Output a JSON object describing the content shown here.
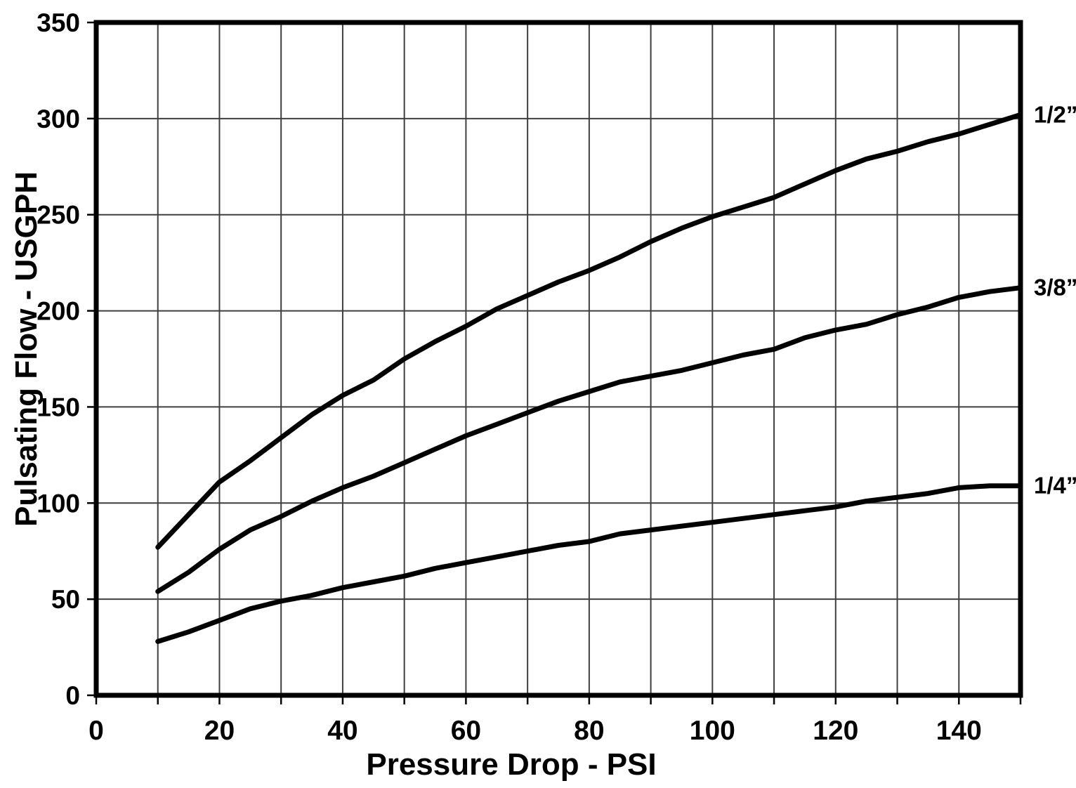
{
  "figure": {
    "background": "#ffffff",
    "ink": "#000000",
    "grid_color": "#3f3f3f"
  },
  "chart_data": {
    "type": "line",
    "title": "",
    "xlabel": "Pressure Drop - PSI",
    "ylabel": "Pulsating Flow - USGPH",
    "xlim": [
      0,
      150
    ],
    "ylim": [
      0,
      350
    ],
    "x_grid_step": 10,
    "y_grid_step": 50,
    "x_tick_labels": [
      0,
      20,
      40,
      60,
      80,
      100,
      120,
      140
    ],
    "y_tick_labels": [
      0,
      50,
      100,
      150,
      200,
      250,
      300,
      350
    ],
    "grid": true,
    "line_color": "#000000",
    "legend_position": "right-of-line-ends",
    "series": [
      {
        "name": "1/2”",
        "points": [
          [
            10,
            77
          ],
          [
            15,
            94
          ],
          [
            20,
            111
          ],
          [
            25,
            122
          ],
          [
            30,
            134
          ],
          [
            35,
            146
          ],
          [
            40,
            156
          ],
          [
            45,
            164
          ],
          [
            50,
            175
          ],
          [
            55,
            184
          ],
          [
            60,
            192
          ],
          [
            65,
            201
          ],
          [
            70,
            208
          ],
          [
            75,
            215
          ],
          [
            80,
            221
          ],
          [
            85,
            228
          ],
          [
            90,
            236
          ],
          [
            95,
            243
          ],
          [
            100,
            249
          ],
          [
            105,
            254
          ],
          [
            110,
            259
          ],
          [
            115,
            266
          ],
          [
            120,
            273
          ],
          [
            125,
            279
          ],
          [
            130,
            283
          ],
          [
            135,
            288
          ],
          [
            140,
            292
          ],
          [
            145,
            297
          ],
          [
            150,
            302
          ]
        ]
      },
      {
        "name": "3/8”",
        "points": [
          [
            10,
            54
          ],
          [
            15,
            64
          ],
          [
            20,
            76
          ],
          [
            25,
            86
          ],
          [
            30,
            93
          ],
          [
            35,
            101
          ],
          [
            40,
            108
          ],
          [
            45,
            114
          ],
          [
            50,
            121
          ],
          [
            55,
            128
          ],
          [
            60,
            135
          ],
          [
            65,
            141
          ],
          [
            70,
            147
          ],
          [
            75,
            153
          ],
          [
            80,
            158
          ],
          [
            85,
            163
          ],
          [
            90,
            166
          ],
          [
            95,
            169
          ],
          [
            100,
            173
          ],
          [
            105,
            177
          ],
          [
            110,
            180
          ],
          [
            115,
            186
          ],
          [
            120,
            190
          ],
          [
            125,
            193
          ],
          [
            130,
            198
          ],
          [
            135,
            202
          ],
          [
            140,
            207
          ],
          [
            145,
            210
          ],
          [
            150,
            212
          ]
        ]
      },
      {
        "name": "1/4”",
        "points": [
          [
            10,
            28
          ],
          [
            15,
            33
          ],
          [
            20,
            39
          ],
          [
            25,
            45
          ],
          [
            30,
            49
          ],
          [
            35,
            52
          ],
          [
            40,
            56
          ],
          [
            45,
            59
          ],
          [
            50,
            62
          ],
          [
            55,
            66
          ],
          [
            60,
            69
          ],
          [
            65,
            72
          ],
          [
            70,
            75
          ],
          [
            75,
            78
          ],
          [
            80,
            80
          ],
          [
            85,
            84
          ],
          [
            90,
            86
          ],
          [
            95,
            88
          ],
          [
            100,
            90
          ],
          [
            105,
            92
          ],
          [
            110,
            94
          ],
          [
            115,
            96
          ],
          [
            120,
            98
          ],
          [
            125,
            101
          ],
          [
            130,
            103
          ],
          [
            135,
            105
          ],
          [
            140,
            108
          ],
          [
            145,
            109
          ],
          [
            150,
            109
          ]
        ]
      }
    ]
  }
}
